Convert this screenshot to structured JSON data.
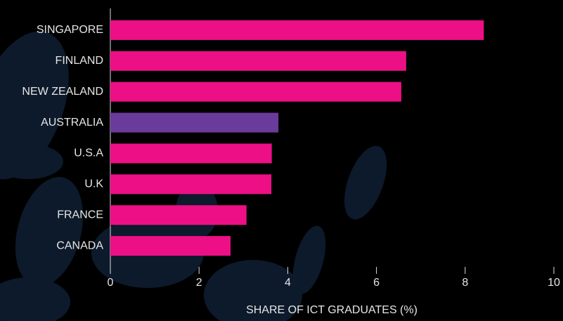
{
  "chart_data": {
    "type": "barh",
    "x_label": "SHARE OF ICT GRADUATES (%)",
    "categories": [
      "SINGAPORE",
      "FINLAND",
      "NEW ZEALAND",
      "AUSTRALIA",
      "U.S.A",
      "U.K",
      "FRANCE",
      "CANADA"
    ],
    "values": [
      8.42,
      6.67,
      6.56,
      3.79,
      3.64,
      3.63,
      3.07,
      2.71
    ],
    "colors": [
      "#ec0f85",
      "#ec0f85",
      "#ec0f85",
      "#6b3b9b",
      "#ec0f85",
      "#ec0f85",
      "#ec0f85",
      "#ec0f85"
    ],
    "xlim": [
      0,
      10
    ],
    "xticks": [
      0,
      2,
      4,
      6,
      8,
      10
    ]
  }
}
